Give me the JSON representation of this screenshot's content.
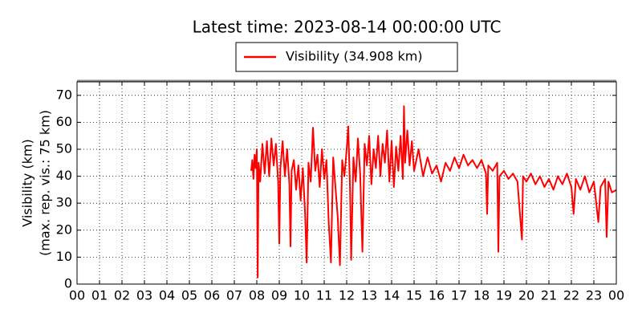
{
  "chart_data": {
    "type": "line",
    "title": "Latest time: 2023-08-14 00:00:00 UTC",
    "ylabel": [
      "Visibility (km)",
      "(max. rep. vis.: 75 km)"
    ],
    "xlim": [
      0,
      24
    ],
    "xticks": [
      {
        "value": 0,
        "label": "00"
      },
      {
        "value": 1,
        "label": "01"
      },
      {
        "value": 2,
        "label": "02"
      },
      {
        "value": 3,
        "label": "03"
      },
      {
        "value": 4,
        "label": "04"
      },
      {
        "value": 5,
        "label": "05"
      },
      {
        "value": 6,
        "label": "06"
      },
      {
        "value": 7,
        "label": "07"
      },
      {
        "value": 8,
        "label": "08"
      },
      {
        "value": 9,
        "label": "09"
      },
      {
        "value": 10,
        "label": "10"
      },
      {
        "value": 11,
        "label": "11"
      },
      {
        "value": 12,
        "label": "12"
      },
      {
        "value": 13,
        "label": "13"
      },
      {
        "value": 14,
        "label": "14"
      },
      {
        "value": 15,
        "label": "15"
      },
      {
        "value": 16,
        "label": "16"
      },
      {
        "value": 17,
        "label": "17"
      },
      {
        "value": 18,
        "label": "18"
      },
      {
        "value": 19,
        "label": "19"
      },
      {
        "value": 20,
        "label": "20"
      },
      {
        "value": 21,
        "label": "21"
      },
      {
        "value": 22,
        "label": "22"
      },
      {
        "value": 23,
        "label": "23"
      },
      {
        "value": 24,
        "label": "00"
      }
    ],
    "ylim": [
      0,
      75
    ],
    "yticks": [
      0,
      10,
      20,
      30,
      40,
      50,
      60,
      70
    ],
    "grid": true,
    "legend": "top",
    "x": [
      7.75,
      7.8,
      7.85,
      7.9,
      7.95,
      8.0,
      8.04,
      8.08,
      8.15,
      8.25,
      8.35,
      8.45,
      8.55,
      8.65,
      8.75,
      8.85,
      8.95,
      9.0,
      9.05,
      9.15,
      9.25,
      9.35,
      9.45,
      9.5,
      9.55,
      9.65,
      9.75,
      9.85,
      9.95,
      10.05,
      10.15,
      10.22,
      10.3,
      10.4,
      10.5,
      10.6,
      10.7,
      10.8,
      10.9,
      11.0,
      11.1,
      11.2,
      11.3,
      11.4,
      11.5,
      11.6,
      11.7,
      11.8,
      11.9,
      12.0,
      12.07,
      12.15,
      12.2,
      12.3,
      12.4,
      12.5,
      12.6,
      12.7,
      12.8,
      12.9,
      13.0,
      13.1,
      13.2,
      13.3,
      13.4,
      13.5,
      13.6,
      13.7,
      13.8,
      13.9,
      14.0,
      14.1,
      14.2,
      14.3,
      14.4,
      14.5,
      14.55,
      14.6,
      14.7,
      14.8,
      14.9,
      15.0,
      15.2,
      15.4,
      15.6,
      15.8,
      16.0,
      16.2,
      16.4,
      16.6,
      16.8,
      17.0,
      17.2,
      17.4,
      17.6,
      17.8,
      18.0,
      18.2,
      18.25,
      18.3,
      18.5,
      18.7,
      18.75,
      18.8,
      19.0,
      19.2,
      19.4,
      19.6,
      19.8,
      19.85,
      20.0,
      20.2,
      20.4,
      20.6,
      20.8,
      21.0,
      21.2,
      21.4,
      21.6,
      21.8,
      22.0,
      22.1,
      22.2,
      22.4,
      22.6,
      22.8,
      23.0,
      23.2,
      23.3,
      23.5,
      23.57,
      23.65,
      23.8,
      24.0
    ],
    "series": [
      {
        "name": "Visibility (34.908 km)",
        "color": "#ff0000",
        "values": [
          42,
          46,
          39,
          48,
          43,
          50,
          2.5,
          45,
          38,
          52,
          41,
          53,
          40,
          54,
          44,
          52,
          38,
          15,
          43,
          53,
          40,
          50,
          37,
          14,
          42,
          46,
          35,
          44,
          31,
          43,
          26,
          8,
          45,
          38,
          58,
          42,
          48,
          36,
          50,
          39,
          46,
          23,
          8,
          47,
          36,
          25,
          7,
          46,
          40,
          50,
          58.5,
          35,
          9,
          47,
          38,
          54,
          41,
          12,
          52,
          44,
          55,
          37,
          50,
          43,
          55,
          40,
          52,
          45,
          57,
          38,
          53,
          36,
          51,
          42,
          55,
          39,
          66,
          45,
          57,
          44,
          53,
          42,
          50,
          40,
          47,
          41,
          44,
          38,
          45,
          42,
          47,
          43,
          48,
          44,
          46,
          43,
          46,
          41,
          26,
          44,
          42,
          45,
          12,
          40,
          42,
          39,
          41,
          38,
          16.5,
          40,
          38,
          41,
          37,
          40,
          36,
          39,
          35,
          40,
          37,
          41,
          36,
          26,
          39,
          35,
          40,
          34,
          38,
          23,
          36,
          39,
          17.5,
          38,
          34,
          34.908
        ]
      }
    ]
  }
}
